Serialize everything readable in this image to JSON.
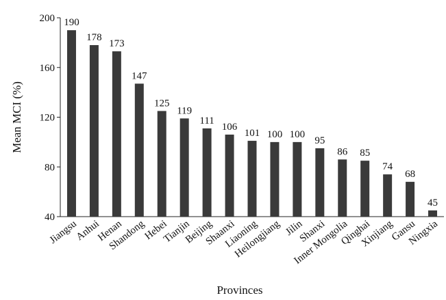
{
  "chart_data": {
    "type": "bar",
    "title": "",
    "xlabel": "Provinces",
    "ylabel": "Mean MCI (%)",
    "ylim": [
      40,
      200
    ],
    "yticks": [
      40,
      80,
      120,
      160,
      200
    ],
    "grid": false,
    "legend": "none",
    "bar_color": "#3a3a3a",
    "categories": [
      "Jiangsu",
      "Anhui",
      "Henan",
      "Shandong",
      "Hebei",
      "Tianjin",
      "Beijing",
      "Shaanxi",
      "Liaoning",
      "Heilongjiang",
      "Jilin",
      "Shanxi",
      "Inner Mongolia",
      "Qinghai",
      "Xinjiang",
      "Gansu",
      "Ningxia"
    ],
    "values": [
      190,
      178,
      173,
      147,
      125,
      119,
      111,
      106,
      101,
      100,
      100,
      95,
      86,
      85,
      74,
      68,
      45
    ]
  }
}
